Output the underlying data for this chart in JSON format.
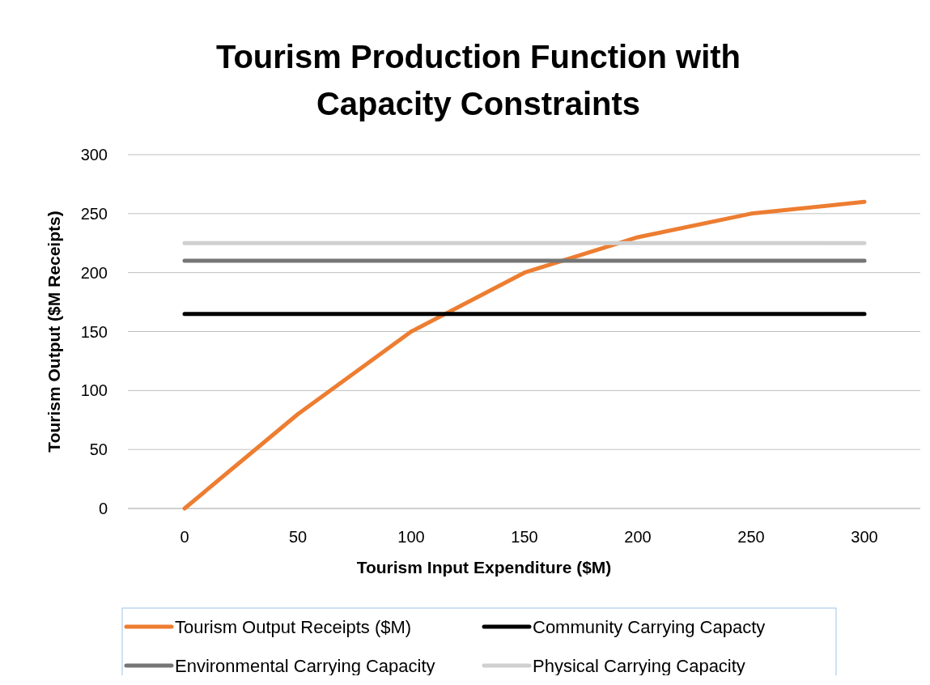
{
  "chart_data": {
    "type": "line",
    "title": "Tourism Production Function with Capacity Constraints",
    "xlabel": "Tourism Input Expenditure ($M)",
    "ylabel": "Tourism Output ($M Receipts)",
    "categories": [
      "0",
      "50",
      "100",
      "150",
      "200",
      "250",
      "300"
    ],
    "series": [
      {
        "name": "Tourism Output Receipts ($M)",
        "color": "#ed7d31",
        "values": [
          0,
          80,
          150,
          200,
          230,
          250,
          260
        ]
      },
      {
        "name": "Community Carrying Capacty",
        "color": "#000000",
        "values": [
          165,
          165,
          165,
          165,
          165,
          165,
          165
        ]
      },
      {
        "name": "Environmental Carrying Capacity",
        "color": "#767676",
        "values": [
          210,
          210,
          210,
          210,
          210,
          210,
          210
        ]
      },
      {
        "name": "Physical Carrying Capacity",
        "color": "#d0d0d0",
        "values": [
          225,
          225,
          225,
          225,
          225,
          225,
          225
        ]
      }
    ],
    "ylim": [
      0,
      300
    ],
    "yticks": [
      0,
      50,
      100,
      150,
      200,
      250,
      300
    ],
    "grid": "y",
    "legend": "bottom",
    "marker": "none",
    "line_style": "solid"
  }
}
